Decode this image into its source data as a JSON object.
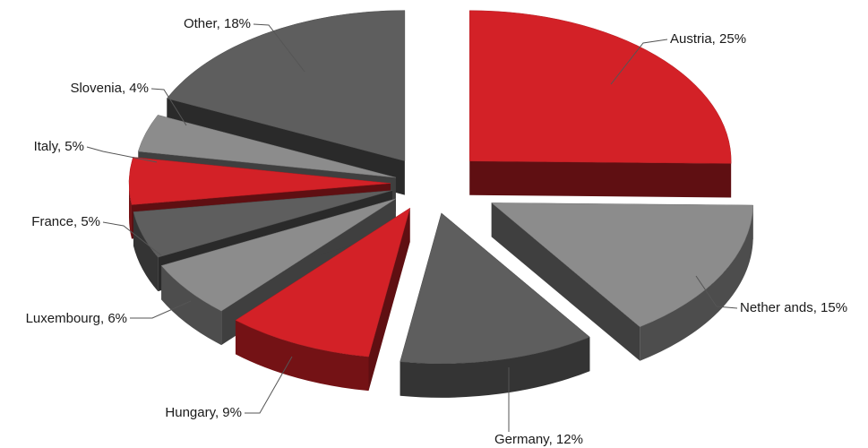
{
  "chart_data": {
    "type": "pie",
    "style": "3d-exploded",
    "title": "",
    "slices": [
      {
        "label": "Austria, 25%",
        "category": "Austria",
        "value": 25,
        "color": "#d32127"
      },
      {
        "label": "Nether ands, 15%",
        "category": "Netherlands",
        "value": 15,
        "color": "#8c8c8c"
      },
      {
        "label": "Germany, 12%",
        "category": "Germany",
        "value": 12,
        "color": "#5e5e5e"
      },
      {
        "label": "Hungary, 9%",
        "category": "Hungary",
        "value": 9,
        "color": "#d32127"
      },
      {
        "label": "Luxembourg, 6%",
        "category": "Luxembourg",
        "value": 6,
        "color": "#8c8c8c"
      },
      {
        "label": "France, 5%",
        "category": "France",
        "value": 5,
        "color": "#5e5e5e"
      },
      {
        "label": "Italy, 5%",
        "category": "Italy",
        "value": 5,
        "color": "#d32127"
      },
      {
        "label": "Slovenia, 4%",
        "category": "Slovenia",
        "value": 4,
        "color": "#8c8c8c"
      },
      {
        "label": "Other, 18%",
        "category": "Other",
        "value": 18,
        "color": "#5e5e5e"
      }
    ],
    "label_placement": "outside with leader lines",
    "legend": "none"
  }
}
